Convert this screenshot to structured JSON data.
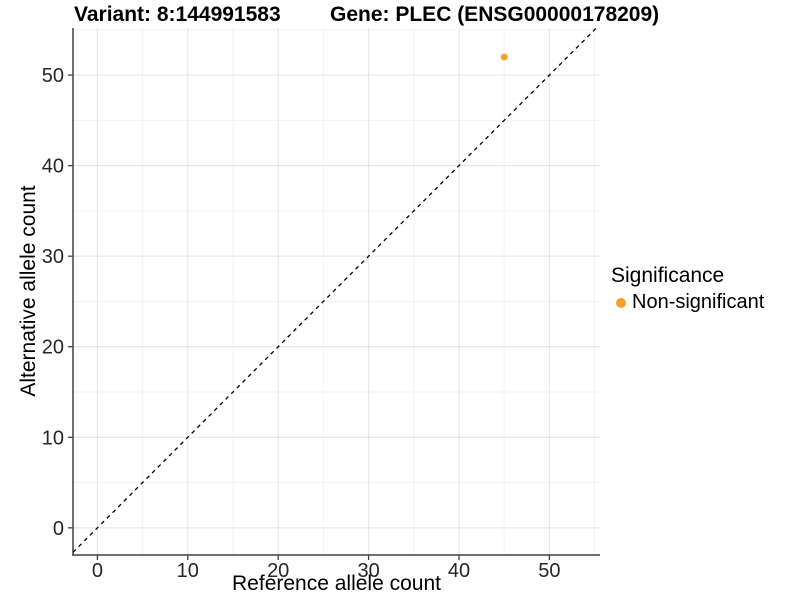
{
  "title": {
    "left": "Variant: 8:144991583",
    "right": "Gene: PLEC (ENSG00000178209)"
  },
  "chart_data": {
    "type": "scatter",
    "title": "Variant: 8:144991583   Gene: PLEC (ENSG00000178209)",
    "xlabel": "Reference allele count",
    "ylabel": "Alternative allele count",
    "xlim": [
      -2.7,
      55.6
    ],
    "ylim": [
      -3.0,
      55.2
    ],
    "x_ticks": [
      0,
      10,
      20,
      30,
      40,
      50
    ],
    "y_ticks": [
      0,
      10,
      20,
      30,
      40,
      50
    ],
    "x_minor_ticks": [
      5,
      15,
      25,
      35,
      45,
      55
    ],
    "y_minor_ticks": [
      5,
      15,
      25,
      35,
      45,
      55
    ],
    "grid": true,
    "legend_position": "right",
    "series": [
      {
        "name": "Non-significant",
        "color": "#F9A026",
        "points": [
          {
            "x": 45,
            "y": 52
          }
        ]
      }
    ],
    "reference_line": {
      "equation": "y = x",
      "style": "dashed",
      "color": "#000000"
    },
    "legend": {
      "title": "Significance",
      "entries": [
        {
          "label": "Non-significant",
          "color": "#F9A026",
          "marker": "circle"
        }
      ]
    }
  },
  "colors": {
    "background": "#ffffff",
    "grid_major": "#e4e4e4",
    "grid_minor": "#f2f2f2",
    "axis_line": "#404040",
    "tick_mark": "#404040",
    "tick_label": "#262626",
    "point": "#F9A026",
    "dashed_line": "#000000"
  }
}
